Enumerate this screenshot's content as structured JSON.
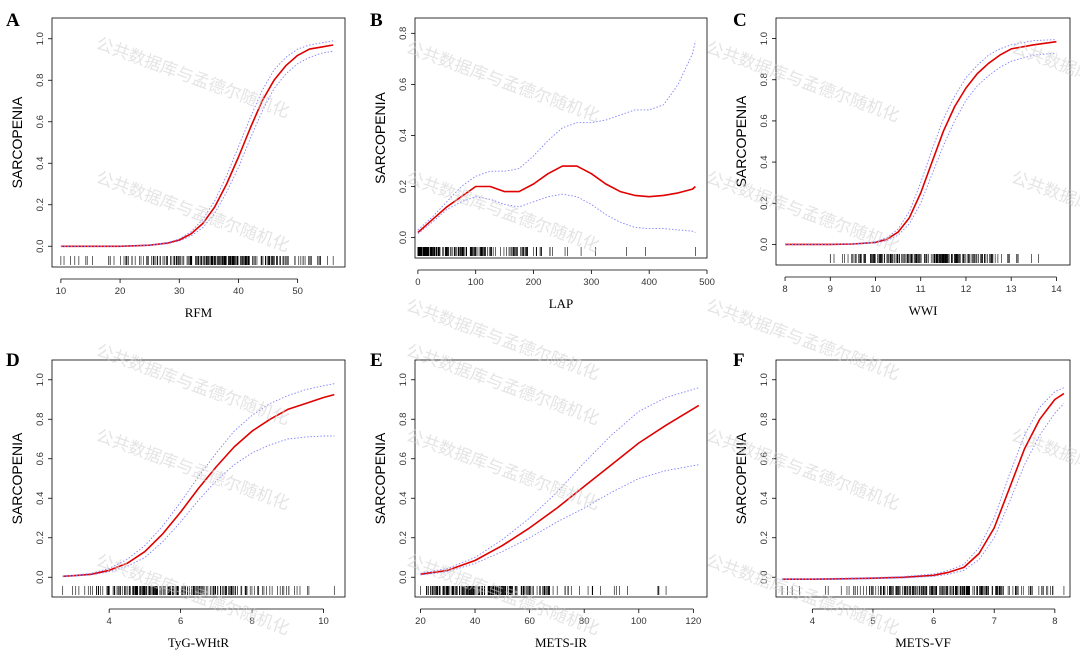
{
  "watermark_text": "公共数据库与孟德尔随机化",
  "colors": {
    "fit": "#e00000",
    "ci": "#8080ff",
    "rug": "#000000",
    "axes": "#000000"
  },
  "chart_data": [
    {
      "type": "line",
      "panel": "A",
      "xlabel": "RFM",
      "ylabel": "SARCOPENIA",
      "xlim": [
        8.5,
        58
      ],
      "ylim": [
        -0.1,
        1.1
      ],
      "xticks": [
        10,
        20,
        30,
        40,
        50
      ],
      "yticks": [
        0.0,
        0.2,
        0.4,
        0.6,
        0.8,
        1.0
      ],
      "ytick_labels": [
        "0.0",
        "0.2",
        "0.4",
        "0.6",
        "0.8",
        "1.0"
      ],
      "series": [
        {
          "role": "fit",
          "x": [
            10,
            15,
            20,
            25,
            28,
            30,
            32,
            34,
            36,
            38,
            40,
            42,
            44,
            46,
            48,
            50,
            52,
            54,
            56
          ],
          "values": [
            0.0,
            0.0,
            0.0,
            0.005,
            0.015,
            0.03,
            0.06,
            0.11,
            0.19,
            0.3,
            0.43,
            0.57,
            0.7,
            0.8,
            0.87,
            0.92,
            0.95,
            0.96,
            0.97
          ]
        },
        {
          "role": "ci_upper",
          "x": [
            10,
            15,
            20,
            25,
            28,
            30,
            32,
            34,
            36,
            38,
            40,
            42,
            44,
            46,
            48,
            50,
            52,
            54,
            56
          ],
          "values": [
            0.0,
            0.0,
            0.0,
            0.006,
            0.018,
            0.035,
            0.07,
            0.13,
            0.22,
            0.34,
            0.48,
            0.62,
            0.75,
            0.85,
            0.91,
            0.95,
            0.97,
            0.98,
            0.99
          ]
        },
        {
          "role": "ci_lower",
          "x": [
            10,
            15,
            20,
            25,
            28,
            30,
            32,
            34,
            36,
            38,
            40,
            42,
            44,
            46,
            48,
            50,
            52,
            54,
            56
          ],
          "values": [
            0.0,
            0.0,
            0.0,
            0.004,
            0.012,
            0.025,
            0.05,
            0.09,
            0.16,
            0.26,
            0.38,
            0.52,
            0.65,
            0.76,
            0.83,
            0.88,
            0.91,
            0.93,
            0.94
          ]
        }
      ],
      "rug": {
        "min": 10,
        "max": 56,
        "peak": 38,
        "spread": 9,
        "count": 230
      }
    },
    {
      "type": "line",
      "panel": "B",
      "xlabel": "LAP",
      "ylabel": "SARCOPENIA",
      "xlim": [
        -5,
        500
      ],
      "ylim": [
        -0.08,
        0.86
      ],
      "xticks": [
        0,
        100,
        200,
        300,
        400,
        500
      ],
      "yticks": [
        0.0,
        0.2,
        0.4,
        0.6,
        0.8
      ],
      "ytick_labels": [
        "0.0",
        "0.2",
        "0.4",
        "0.6",
        "0.8"
      ],
      "series": [
        {
          "role": "fit",
          "x": [
            0,
            25,
            50,
            75,
            100,
            125,
            150,
            175,
            200,
            225,
            250,
            275,
            300,
            325,
            350,
            375,
            400,
            425,
            450,
            475,
            480
          ],
          "values": [
            0.02,
            0.07,
            0.12,
            0.16,
            0.2,
            0.2,
            0.18,
            0.18,
            0.21,
            0.25,
            0.28,
            0.28,
            0.25,
            0.21,
            0.18,
            0.165,
            0.16,
            0.165,
            0.175,
            0.19,
            0.2
          ]
        },
        {
          "role": "ci_upper",
          "x": [
            0,
            25,
            50,
            75,
            100,
            125,
            150,
            175,
            200,
            225,
            250,
            275,
            300,
            325,
            350,
            375,
            400,
            425,
            450,
            475,
            480
          ],
          "values": [
            0.03,
            0.08,
            0.14,
            0.2,
            0.24,
            0.26,
            0.26,
            0.27,
            0.32,
            0.38,
            0.43,
            0.45,
            0.45,
            0.46,
            0.48,
            0.5,
            0.5,
            0.52,
            0.6,
            0.72,
            0.77
          ]
        },
        {
          "role": "ci_lower",
          "x": [
            0,
            25,
            50,
            75,
            100,
            125,
            150,
            175,
            200,
            225,
            250,
            275,
            300,
            325,
            350,
            375,
            400,
            425,
            450,
            475,
            480
          ],
          "values": [
            0.015,
            0.06,
            0.11,
            0.14,
            0.16,
            0.15,
            0.13,
            0.12,
            0.14,
            0.16,
            0.17,
            0.16,
            0.13,
            0.09,
            0.06,
            0.04,
            0.035,
            0.035,
            0.03,
            0.025,
            0.02
          ]
        }
      ],
      "rug": {
        "min": 0,
        "max": 480,
        "peak": 60,
        "spread": 90,
        "count": 220
      }
    },
    {
      "type": "line",
      "panel": "C",
      "xlabel": "WWI",
      "ylabel": "SARCOPENIA",
      "xlim": [
        7.8,
        14.3
      ],
      "ylim": [
        -0.1,
        1.1
      ],
      "xticks": [
        8,
        9,
        10,
        11,
        12,
        13,
        14
      ],
      "yticks": [
        0.0,
        0.2,
        0.4,
        0.6,
        0.8,
        1.0
      ],
      "ytick_labels": [
        "0.0",
        "0.2",
        "0.4",
        "0.6",
        "0.8",
        "1.0"
      ],
      "series": [
        {
          "role": "fit",
          "x": [
            8,
            9,
            9.5,
            10,
            10.25,
            10.5,
            10.75,
            11,
            11.25,
            11.5,
            11.75,
            12,
            12.25,
            12.5,
            12.75,
            13,
            13.5,
            14
          ],
          "values": [
            0.0,
            0.0,
            0.002,
            0.01,
            0.025,
            0.06,
            0.13,
            0.25,
            0.4,
            0.55,
            0.67,
            0.76,
            0.83,
            0.88,
            0.92,
            0.95,
            0.97,
            0.985
          ]
        },
        {
          "role": "ci_upper",
          "x": [
            8,
            9,
            9.5,
            10,
            10.25,
            10.5,
            10.75,
            11,
            11.25,
            11.5,
            11.75,
            12,
            12.25,
            12.5,
            12.75,
            13,
            13.5,
            14
          ],
          "values": [
            0.0,
            0.0,
            0.003,
            0.013,
            0.032,
            0.075,
            0.16,
            0.3,
            0.46,
            0.61,
            0.72,
            0.81,
            0.87,
            0.92,
            0.95,
            0.97,
            0.99,
            0.995
          ]
        },
        {
          "role": "ci_lower",
          "x": [
            8,
            9,
            9.5,
            10,
            10.25,
            10.5,
            10.75,
            11,
            11.25,
            11.5,
            11.75,
            12,
            12.25,
            12.5,
            12.75,
            13,
            13.5,
            14
          ],
          "values": [
            0.0,
            0.0,
            0.001,
            0.007,
            0.018,
            0.045,
            0.1,
            0.2,
            0.34,
            0.48,
            0.6,
            0.7,
            0.77,
            0.82,
            0.86,
            0.89,
            0.92,
            0.93
          ]
        }
      ],
      "rug": {
        "min": 9.0,
        "max": 13.6,
        "peak": 11.0,
        "spread": 0.9,
        "count": 220
      }
    },
    {
      "type": "line",
      "panel": "D",
      "xlabel": "TyG-WHtR",
      "ylabel": "SARCOPENIA",
      "xlim": [
        2.4,
        10.6
      ],
      "ylim": [
        -0.1,
        1.1
      ],
      "xticks": [
        4,
        6,
        8,
        10
      ],
      "yticks": [
        0.0,
        0.2,
        0.4,
        0.6,
        0.8,
        1.0
      ],
      "ytick_labels": [
        "0.0",
        "0.2",
        "0.4",
        "0.6",
        "0.8",
        "1.0"
      ],
      "series": [
        {
          "role": "fit",
          "x": [
            2.7,
            3,
            3.5,
            4,
            4.5,
            5,
            5.5,
            6,
            6.5,
            7,
            7.5,
            8,
            8.5,
            9,
            9.5,
            10,
            10.3
          ],
          "values": [
            0.005,
            0.008,
            0.015,
            0.035,
            0.07,
            0.13,
            0.22,
            0.33,
            0.45,
            0.56,
            0.66,
            0.74,
            0.8,
            0.85,
            0.88,
            0.91,
            0.925
          ]
        },
        {
          "role": "ci_upper",
          "x": [
            2.7,
            3,
            3.5,
            4,
            4.5,
            5,
            5.5,
            6,
            6.5,
            7,
            7.5,
            8,
            8.5,
            9,
            9.5,
            10,
            10.3
          ],
          "values": [
            0.007,
            0.01,
            0.02,
            0.045,
            0.09,
            0.16,
            0.26,
            0.38,
            0.51,
            0.63,
            0.74,
            0.82,
            0.88,
            0.92,
            0.95,
            0.97,
            0.98
          ]
        },
        {
          "role": "ci_lower",
          "x": [
            2.7,
            3,
            3.5,
            4,
            4.5,
            5,
            5.5,
            6,
            6.5,
            7,
            7.5,
            8,
            8.5,
            9,
            9.5,
            10,
            10.3
          ],
          "values": [
            0.004,
            0.006,
            0.012,
            0.028,
            0.055,
            0.1,
            0.18,
            0.28,
            0.39,
            0.49,
            0.57,
            0.63,
            0.67,
            0.7,
            0.71,
            0.715,
            0.715
          ]
        }
      ],
      "rug": {
        "min": 2.7,
        "max": 10.3,
        "peak": 5.8,
        "spread": 1.5,
        "count": 220
      }
    },
    {
      "type": "line",
      "panel": "E",
      "xlabel": "METS-IR",
      "ylabel": "SARCOPENIA",
      "xlim": [
        18,
        125
      ],
      "ylim": [
        -0.1,
        1.1
      ],
      "xticks": [
        20,
        40,
        60,
        80,
        100,
        120
      ],
      "yticks": [
        0.0,
        0.2,
        0.4,
        0.6,
        0.8,
        1.0
      ],
      "ytick_labels": [
        "0.0",
        "0.2",
        "0.4",
        "0.6",
        "0.8",
        "1.0"
      ],
      "series": [
        {
          "role": "fit",
          "x": [
            20,
            30,
            40,
            50,
            60,
            70,
            80,
            90,
            100,
            110,
            122
          ],
          "values": [
            0.015,
            0.035,
            0.085,
            0.16,
            0.25,
            0.35,
            0.46,
            0.57,
            0.68,
            0.77,
            0.87
          ]
        },
        {
          "role": "ci_upper",
          "x": [
            20,
            30,
            40,
            50,
            60,
            70,
            80,
            90,
            100,
            110,
            122
          ],
          "values": [
            0.02,
            0.045,
            0.1,
            0.19,
            0.3,
            0.43,
            0.58,
            0.72,
            0.84,
            0.91,
            0.96
          ]
        },
        {
          "role": "ci_lower",
          "x": [
            20,
            30,
            40,
            50,
            60,
            70,
            80,
            90,
            100,
            110,
            122
          ],
          "values": [
            0.012,
            0.028,
            0.07,
            0.13,
            0.2,
            0.28,
            0.35,
            0.43,
            0.5,
            0.54,
            0.57
          ]
        }
      ],
      "rug": {
        "min": 20,
        "max": 110,
        "peak": 45,
        "spread": 15,
        "count": 220
      }
    },
    {
      "type": "line",
      "panel": "F",
      "xlabel": "METS-VF",
      "ylabel": "SARCOPENIA",
      "xlim": [
        3.4,
        8.25
      ],
      "ylim": [
        -0.1,
        1.1
      ],
      "xticks": [
        4,
        5,
        6,
        7,
        8
      ],
      "yticks": [
        0.0,
        0.2,
        0.4,
        0.6,
        0.8,
        1.0
      ],
      "ytick_labels": [
        "0.0",
        "0.2",
        "0.4",
        "0.6",
        "0.8",
        "1.0"
      ],
      "series": [
        {
          "role": "fit",
          "x": [
            3.5,
            4,
            4.5,
            5,
            5.5,
            6,
            6.25,
            6.5,
            6.75,
            7,
            7.25,
            7.5,
            7.75,
            8,
            8.15
          ],
          "values": [
            -0.01,
            -0.01,
            -0.008,
            -0.005,
            0.0,
            0.01,
            0.025,
            0.05,
            0.12,
            0.25,
            0.45,
            0.65,
            0.8,
            0.9,
            0.93
          ]
        },
        {
          "role": "ci_upper",
          "x": [
            3.5,
            4,
            4.5,
            5,
            5.5,
            6,
            6.25,
            6.5,
            6.75,
            7,
            7.25,
            7.5,
            7.75,
            8,
            8.15
          ],
          "values": [
            -0.008,
            -0.008,
            -0.005,
            -0.002,
            0.004,
            0.016,
            0.035,
            0.065,
            0.15,
            0.3,
            0.52,
            0.72,
            0.86,
            0.94,
            0.96
          ]
        },
        {
          "role": "ci_lower",
          "x": [
            3.5,
            4,
            4.5,
            5,
            5.5,
            6,
            6.25,
            6.5,
            6.75,
            7,
            7.25,
            7.5,
            7.75,
            8,
            8.15
          ],
          "values": [
            -0.012,
            -0.012,
            -0.011,
            -0.008,
            -0.004,
            0.005,
            0.015,
            0.035,
            0.09,
            0.2,
            0.38,
            0.57,
            0.72,
            0.83,
            0.88
          ]
        }
      ],
      "rug": {
        "min": 3.5,
        "max": 8.15,
        "peak": 6.3,
        "spread": 0.8,
        "count": 220
      }
    }
  ]
}
